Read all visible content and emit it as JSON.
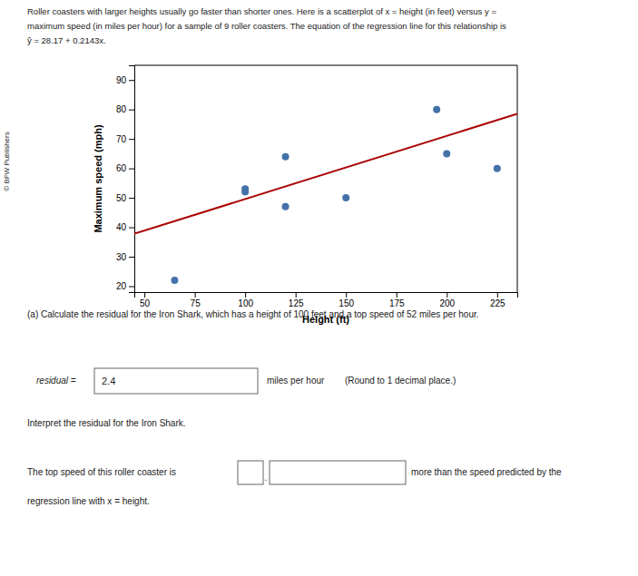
{
  "chart_data": {
    "type": "scatter",
    "title": [
      "Roller coasters with larger heights usually go faster than shorter ones. Here is a scatterplot of x = height (in feet) versus y =",
      "maximum speed (in miles per hour) for a sample of 9 roller coasters. The equation of the regression line for this relationship is",
      "ŷ = 28.17 + 0.2143x."
    ],
    "xlabel": "Height (ft)",
    "ylabel": "Maximum speed (mph)",
    "xlim": [
      45,
      235
    ],
    "ylim": [
      18,
      95
    ],
    "xticks": [
      50,
      75,
      100,
      125,
      150,
      175,
      200,
      225
    ],
    "yticks": [
      20,
      30,
      40,
      50,
      60,
      70,
      80,
      90
    ],
    "grid": false,
    "series": [
      {
        "type": "scatter",
        "color": "#4472a8",
        "x": [
          65,
          100,
          100,
          120,
          120,
          150,
          195,
          200,
          225
        ],
        "values": [
          22,
          52,
          53,
          47,
          64,
          50,
          80,
          65,
          60
        ]
      },
      {
        "type": "line",
        "color": "#aa0000",
        "x": [
          45,
          235
        ],
        "values": [
          37.8135,
          78.5305
        ]
      }
    ],
    "annotations": [
      "© BFW Publishers",
      "(a) Calculate the residual for the Iron Shark, which has a height of 100 feet and a top speed of 52 miles per hour.",
      "residual =",
      "2.4",
      "miles per hour",
      "(Round to 1 decimal place.)",
      "Interpret the residual for the Iron Shark.",
      "The top speed of this roller coaster is",
      ".",
      "more than the speed predicted by the",
      "regression line with x = height."
    ]
  }
}
